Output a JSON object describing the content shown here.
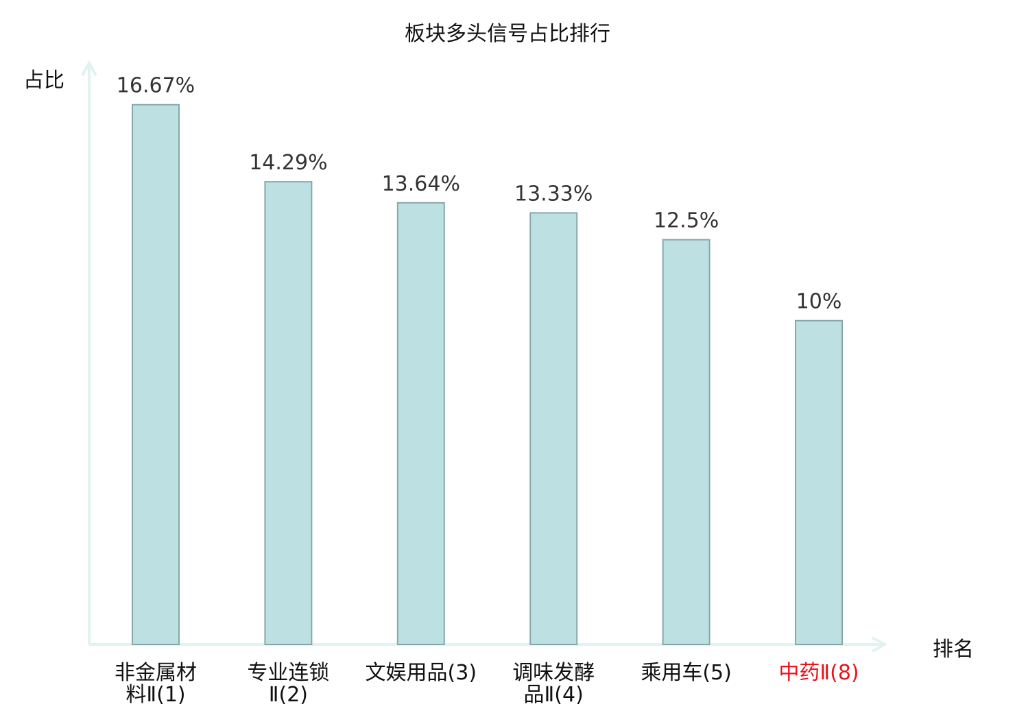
{
  "chart_data": {
    "type": "bar",
    "title": "板块多头信号占比排行",
    "ylabel": "占比",
    "xlabel": "排名",
    "categories": [
      [
        "非金属材",
        "料Ⅱ(1)"
      ],
      [
        "专业连锁",
        "Ⅱ(2)"
      ],
      [
        "文娱用品(3)"
      ],
      [
        "调味发酵",
        "品Ⅱ(4)"
      ],
      [
        "乘用车(5)"
      ],
      [
        "中药Ⅱ(8)"
      ]
    ],
    "values": [
      16.67,
      14.29,
      13.64,
      13.33,
      12.5,
      10
    ],
    "value_labels": [
      "16.67%",
      "14.29%",
      "13.64%",
      "13.33%",
      "12.5%",
      "10%"
    ],
    "highlight_index": 5,
    "ylim": [
      0,
      18
    ],
    "grid": false,
    "colors": {
      "bar_fill": "#bde0e2",
      "bar_stroke": "#86a8aa",
      "axis": "#e0f3f0",
      "highlight_text": "#e8141c"
    }
  }
}
